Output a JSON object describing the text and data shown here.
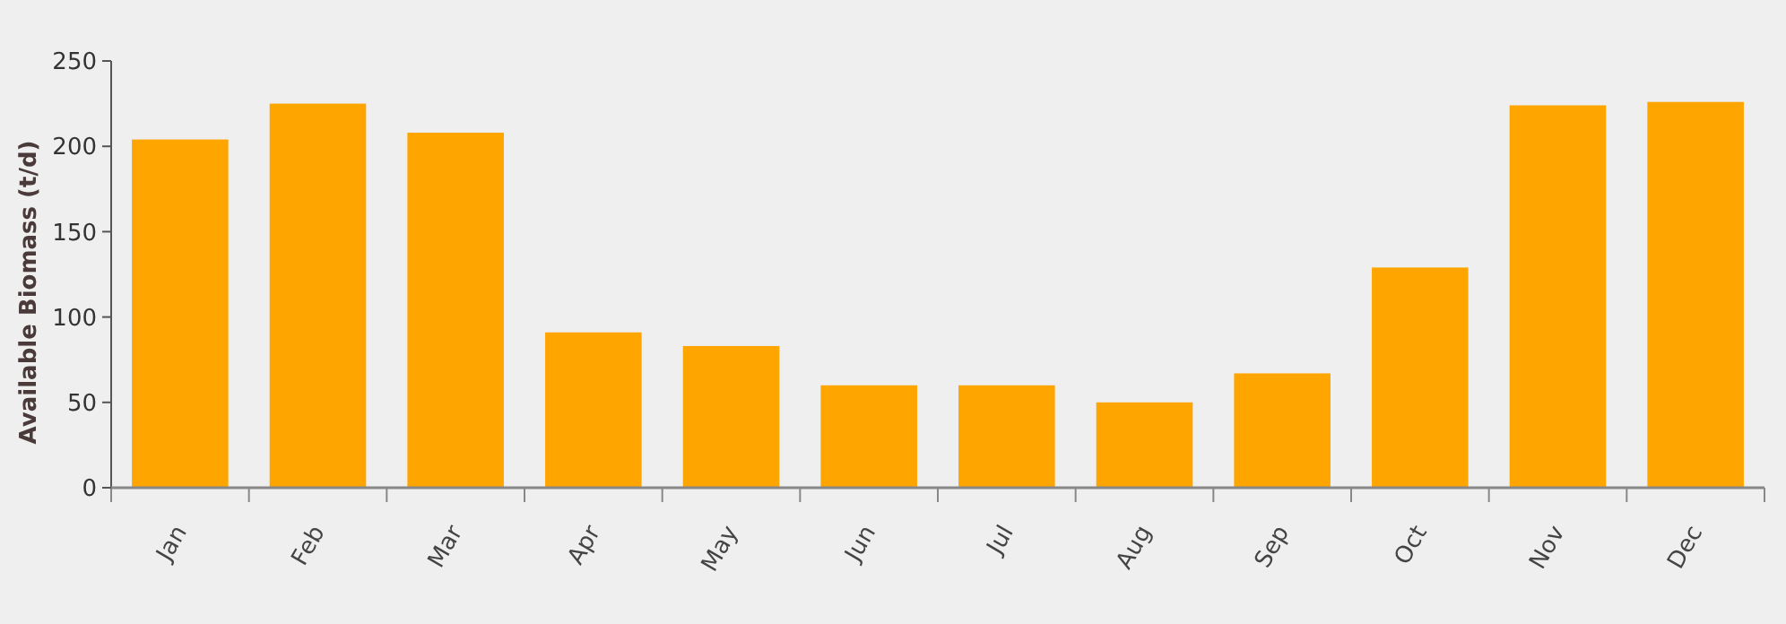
{
  "chart_data": {
    "type": "bar",
    "ylabel": "Available Biomass (t/d)",
    "categories": [
      "Jan",
      "Feb",
      "Mar",
      "Apr",
      "May",
      "Jun",
      "Jul",
      "Aug",
      "Sep",
      "Oct",
      "Nov",
      "Dec"
    ],
    "values": [
      204,
      225,
      208,
      91,
      83,
      60,
      60,
      50,
      67,
      129,
      224,
      226
    ],
    "color": "#ffa500",
    "ylim": [
      0,
      250
    ],
    "yticks": [
      0,
      50,
      100,
      150,
      200,
      250
    ],
    "grid": false
  }
}
